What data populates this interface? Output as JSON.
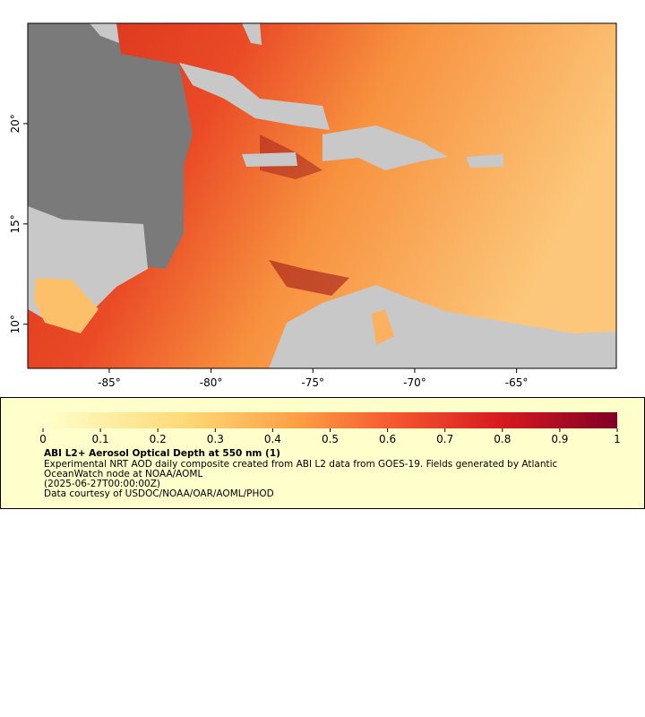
{
  "map": {
    "lonlim": [
      -89,
      -60.1
    ],
    "latlim": [
      7.8,
      25
    ],
    "lon_ticks": [
      {
        "value": -85,
        "label": "-85°"
      },
      {
        "value": -80,
        "label": "-80°"
      },
      {
        "value": -75,
        "label": "-75°"
      },
      {
        "value": -70,
        "label": "-70°"
      },
      {
        "value": -65,
        "label": "-65°"
      }
    ],
    "lat_ticks": [
      {
        "value": 10,
        "label": "10°"
      },
      {
        "value": 15,
        "label": "15°"
      },
      {
        "value": 20,
        "label": "20°"
      }
    ]
  },
  "colorbar": {
    "lim": [
      0,
      1
    ],
    "ticks": [
      0,
      0.1,
      0.2,
      0.3,
      0.4,
      0.5,
      0.6,
      0.7,
      0.8,
      0.9,
      1
    ]
  },
  "legend": {
    "title": "ABI L2+ Aerosol Optical Depth at 550 nm (1)",
    "lines": [
      "Experimental NRT AOD daily composite created from ABI L2 data from GOES-19. Fields generated by Atlantic OceanWatch node at NOAA/AOML",
      "(2025-06-27T00:00:00Z)",
      "Data courtesy of USDOC/NOAA/OAR/AOML/PHOD"
    ]
  }
}
